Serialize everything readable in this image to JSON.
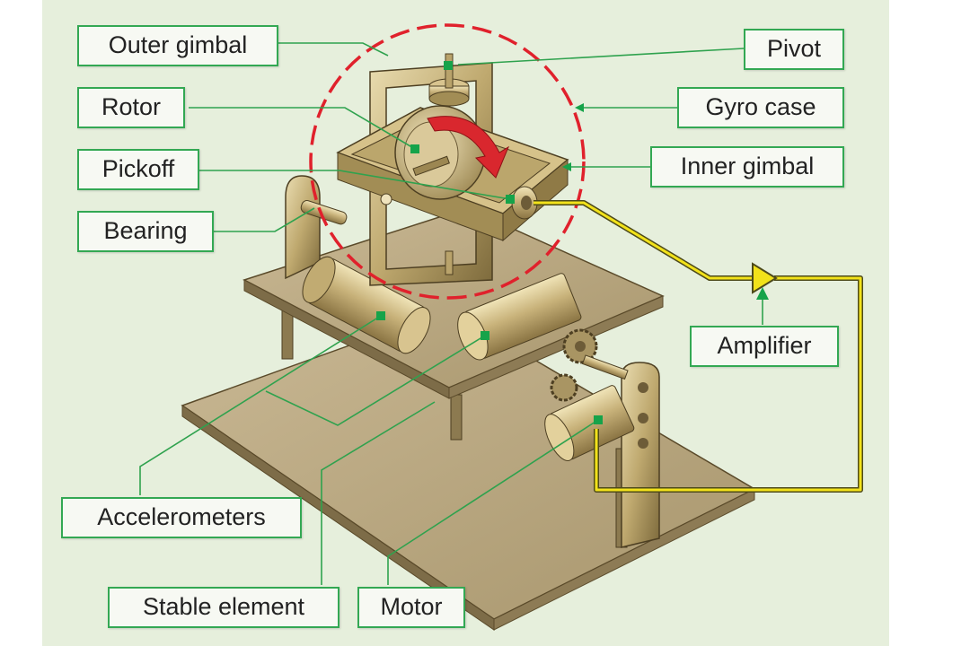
{
  "labels": {
    "outer_gimbal": "Outer gimbal",
    "rotor": "Rotor",
    "pickoff": "Pickoff",
    "bearing": "Bearing",
    "pivot": "Pivot",
    "gyro_case": "Gyro case",
    "inner_gimbal": "Inner gimbal",
    "amplifier": "Amplifier",
    "accelerometers": "Accelerometers",
    "stable_element": "Stable element",
    "motor": "Motor"
  },
  "colors": {
    "background_panel": "#e6efdc",
    "label_border": "#33a853",
    "leader_line": "#2fa24e",
    "gyro_case_circle": "#e0212c",
    "rotation_arrow": "#d9272e",
    "signal_wire": "#f2e21a",
    "metal": "#b9a36b"
  }
}
